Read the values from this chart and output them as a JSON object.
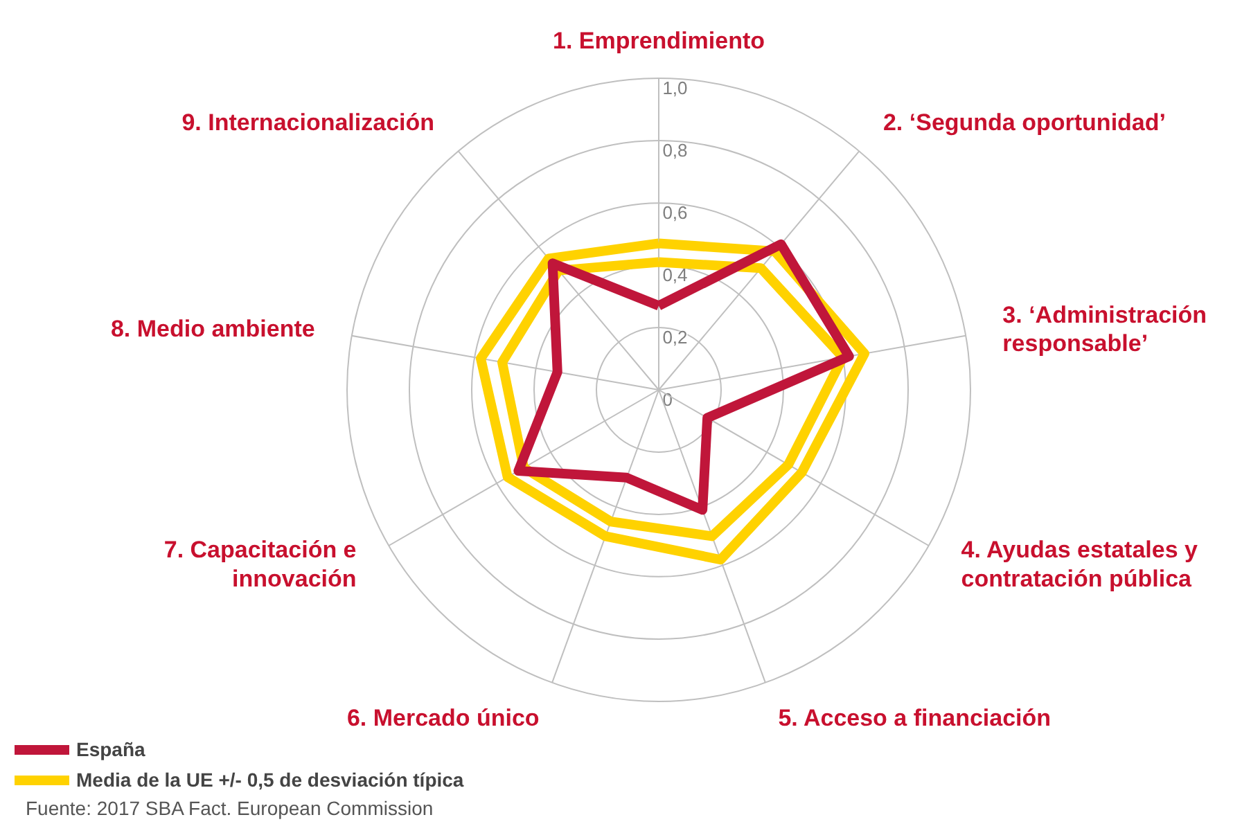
{
  "chart_data": {
    "type": "radar",
    "categories": [
      "1. Emprendimiento",
      "2. ‘Segunda oportunidad’",
      "3. ‘Administración responsable’",
      "4. Ayudas estatales y contratación pública",
      "5. Acceso a financiación",
      "6. Mercado único",
      "7. Capacitación e innovación",
      "8. Medio ambiente",
      "9. Internacionalización"
    ],
    "series": [
      {
        "name": "Media de la UE +/- 0,5 de desviación típica",
        "color": "#ffd200",
        "values": [
          0.47,
          0.58,
          0.67,
          0.53,
          0.58,
          0.5,
          0.56,
          0.58,
          0.55
        ]
      },
      {
        "color": "#ffd200",
        "values": [
          0.41,
          0.51,
          0.6,
          0.48,
          0.5,
          0.45,
          0.5,
          0.51,
          0.5
        ]
      },
      {
        "name": "España",
        "color": "#c0163a",
        "values": [
          0.27,
          0.61,
          0.62,
          0.18,
          0.41,
          0.3,
          0.52,
          0.33,
          0.53
        ]
      }
    ],
    "ylim": [
      0,
      1
    ],
    "yticks": [
      0,
      {
        "value": 0.2,
        "label": "0,2"
      },
      {
        "value": 0.4,
        "label": "0,4"
      },
      {
        "value": 0.6,
        "label": "0,6"
      },
      {
        "value": 0.8,
        "label": "0,8"
      },
      {
        "value": 1,
        "label": "1,0"
      }
    ],
    "legend": "bottom left",
    "annotations": [
      "Fuente: 2017 SBA Fact. European Commission"
    ]
  }
}
